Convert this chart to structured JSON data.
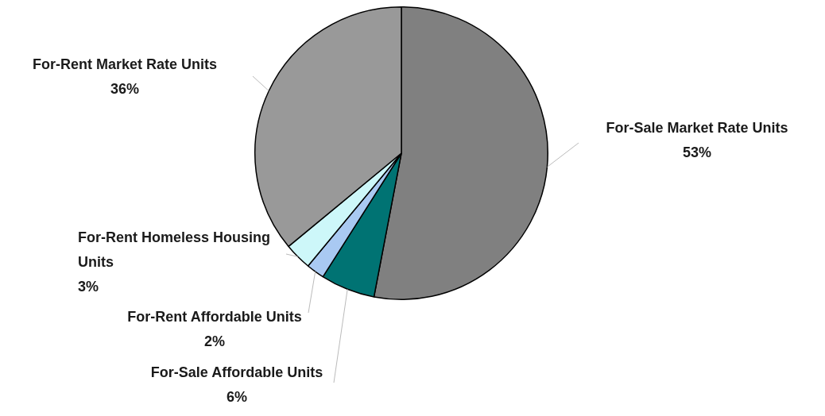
{
  "chart_data": {
    "type": "pie",
    "categories": [
      "For-Sale Market Rate Units",
      "For-Sale Affordable Units",
      "For-Rent Affordable Units",
      "For-Rent Homeless Housing Units",
      "For-Rent Market Rate Units"
    ],
    "values": [
      53,
      6,
      2,
      3,
      36
    ],
    "value_labels": [
      "53%",
      "6%",
      "2%",
      "3%",
      "36%"
    ],
    "colors": [
      "#808080",
      "#007373",
      "#a9c9f2",
      "#cdf7f9",
      "#999999"
    ],
    "legend": false
  }
}
